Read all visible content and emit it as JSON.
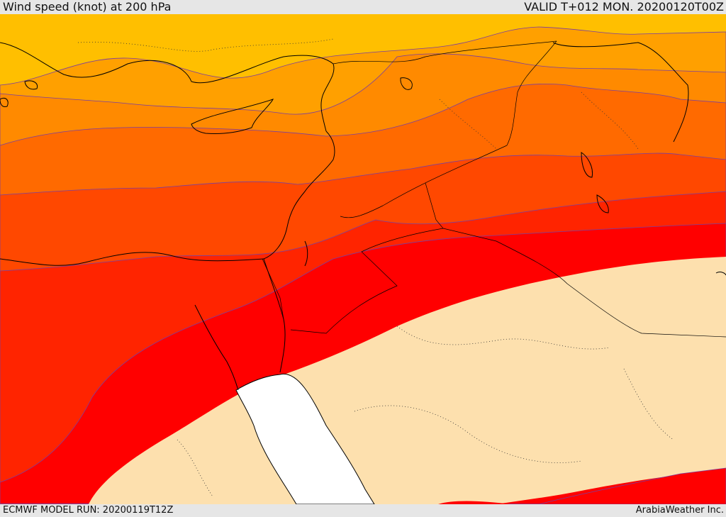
{
  "header": {
    "title": "Wind speed (knot) at 200 hPa",
    "valid": "VALID T+012 MON. 20200120T00Z"
  },
  "footer": {
    "model_run": "ECMWF MODEL RUN: 20200119T12Z",
    "credit": "ArabiaWeather Inc."
  },
  "map": {
    "field": "wind speed at 200 hPa",
    "fill_colors": {
      "band_1": "#ffbf00",
      "band_2": "#ffa000",
      "band_3": "#ff8a00",
      "band_4": "#ff6a00",
      "band_5": "#ff4800",
      "band_6": "#ff2400",
      "band_7": "#ff0000",
      "below_threshold": "#fde0ae",
      "sea": "#ffffff"
    },
    "contour_color": "#7a3fa0",
    "coastline_color": "#000000"
  }
}
